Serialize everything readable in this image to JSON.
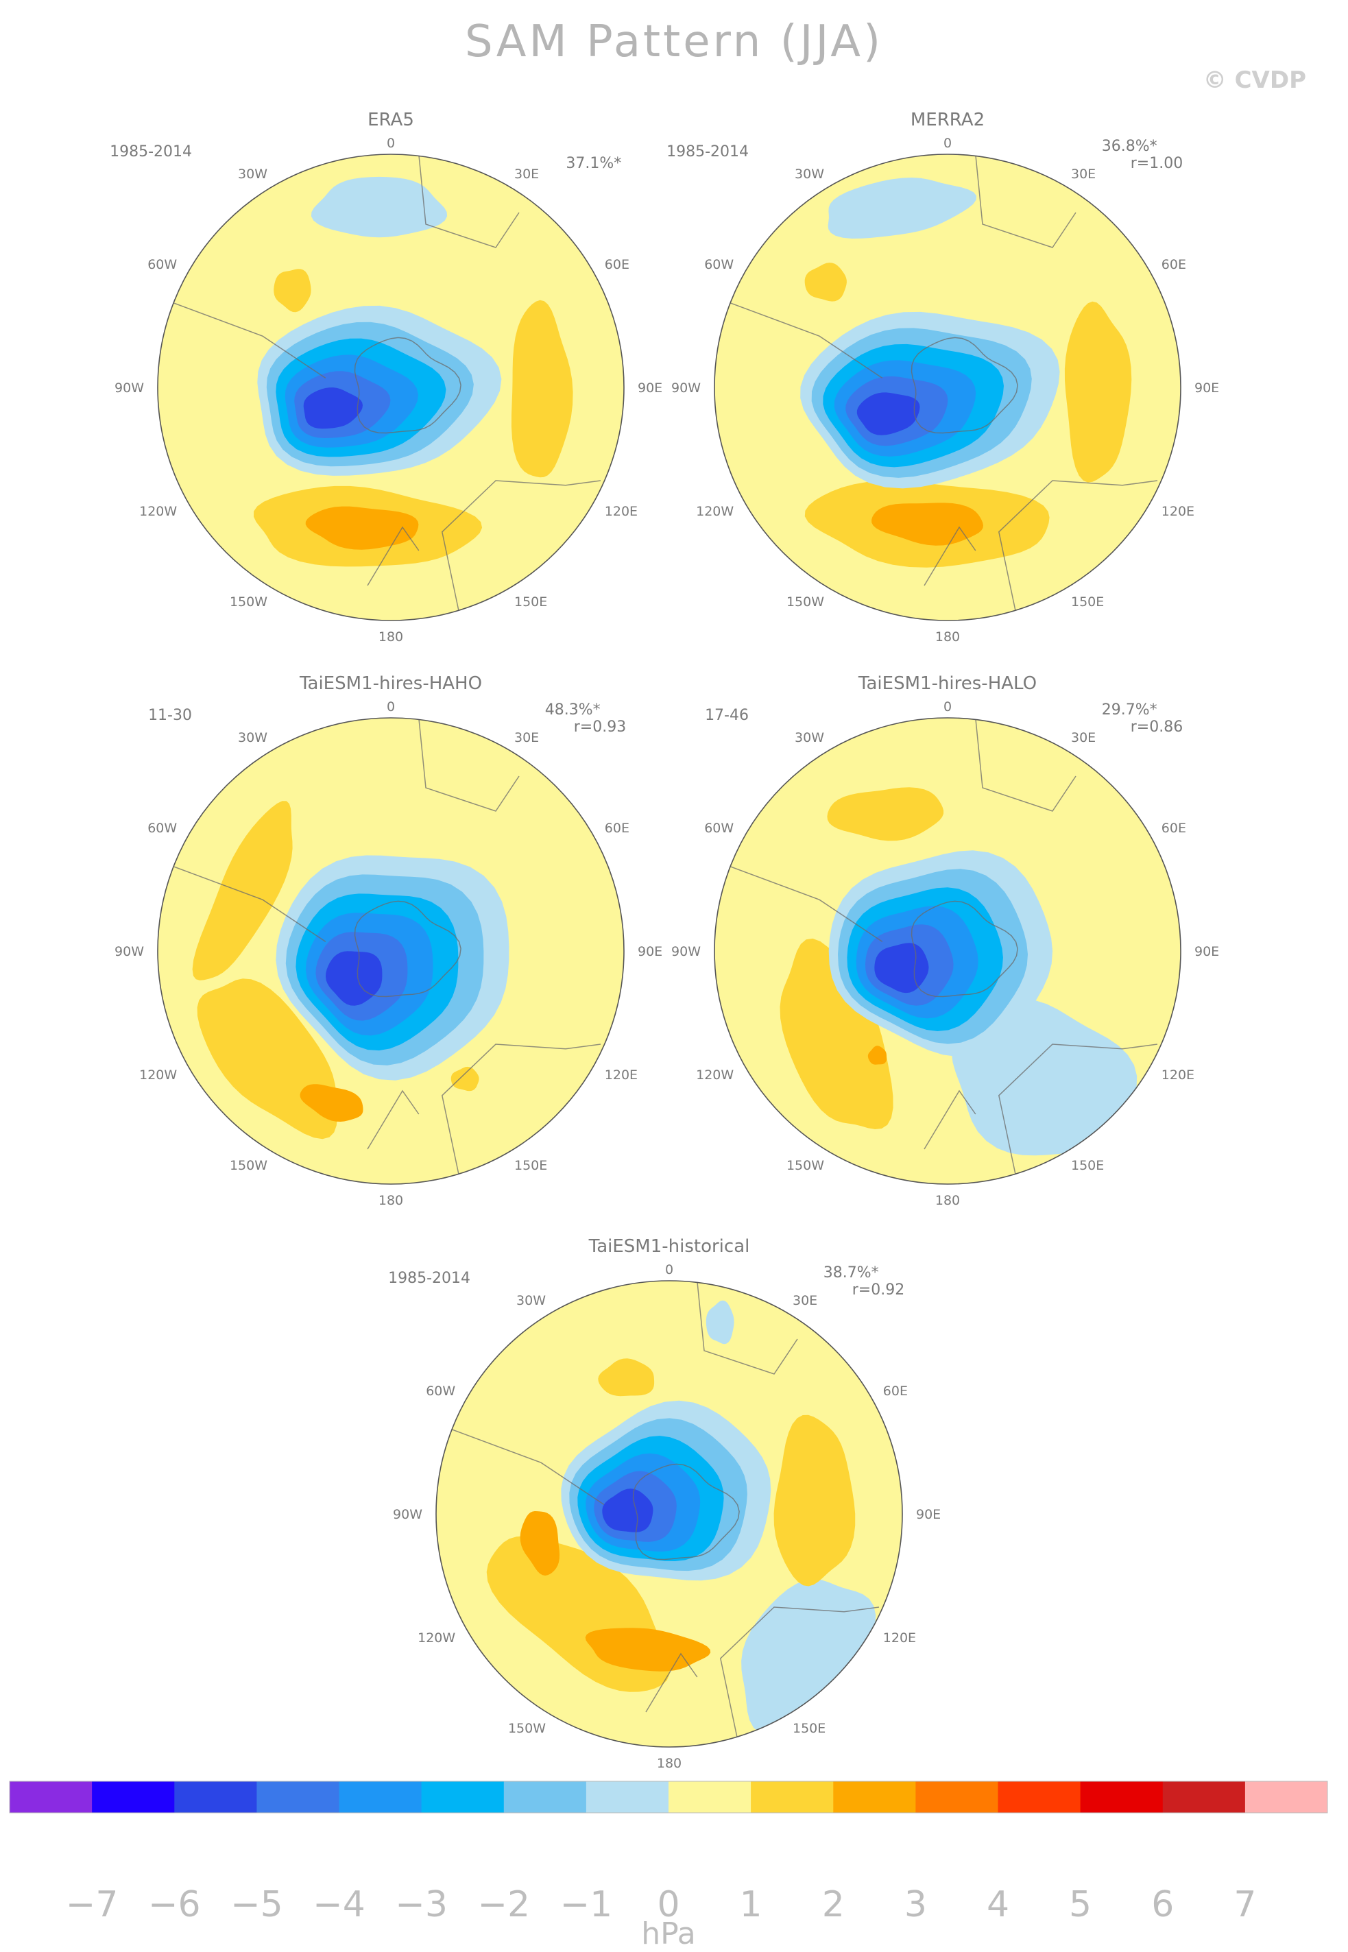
{
  "figure": {
    "title": "SAM Pattern (JJA)",
    "copyright": "© CVDP"
  },
  "lon_labels": [
    "0",
    "30E",
    "60E",
    "90E",
    "120E",
    "150E",
    "180",
    "150W",
    "120W",
    "90W",
    "60W",
    "30W"
  ],
  "panels": [
    {
      "name": "ERA5",
      "period": "1985-2014",
      "pct": "37.1%*",
      "r": ""
    },
    {
      "name": "MERRA2",
      "period": "1985-2014",
      "pct": "36.8%*",
      "r": "r=1.00"
    },
    {
      "name": "TaiESM1-hires-HAHO",
      "period": "11-30",
      "pct": "48.3%*",
      "r": "r=0.93"
    },
    {
      "name": "TaiESM1-hires-HALO",
      "period": "17-46",
      "pct": "29.7%*",
      "r": "r=0.86"
    },
    {
      "name": "TaiESM1-historical",
      "period": "1985-2014",
      "pct": "38.7%*",
      "r": "r=0.92"
    }
  ],
  "colorbar": {
    "colors": [
      "#8a2be2",
      "#1f00ff",
      "#2b45e6",
      "#3a78ea",
      "#1e96f5",
      "#00b4f5",
      "#74c5ef",
      "#b6dff2",
      "#fdf79a",
      "#fdd535",
      "#fda900",
      "#ff7a00",
      "#ff3a00",
      "#e60000",
      "#cc1f1f",
      "#ffb3b3"
    ],
    "ticks": [
      "-7",
      "-6",
      "-5",
      "-4",
      "-3",
      "-2",
      "-1",
      "0",
      "1",
      "2",
      "3",
      "4",
      "5",
      "6",
      "7"
    ],
    "unit": "hPa"
  }
}
